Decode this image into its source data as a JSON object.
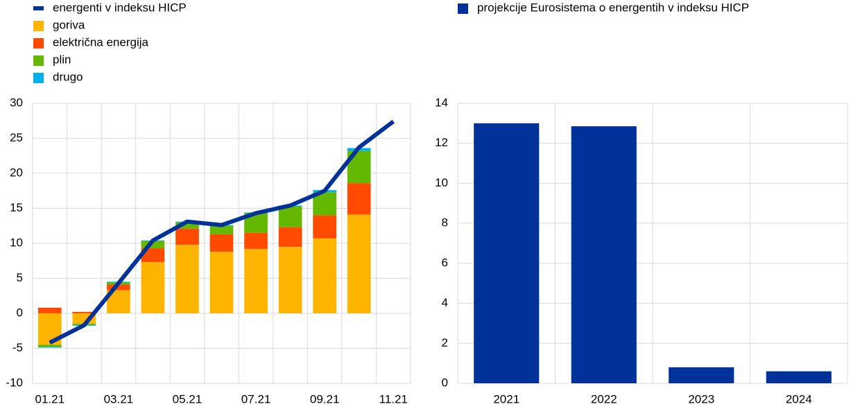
{
  "chart_data": [
    {
      "type": "bar",
      "stacked": true,
      "categories": [
        "01.21",
        null,
        "03.21",
        null,
        "05.21",
        null,
        "07.21",
        null,
        "09.21",
        null,
        "11.21"
      ],
      "series": [
        {
          "name": "energenti v indeksu HICP",
          "type": "line",
          "color": "#003299",
          "values": [
            -4.2,
            -1.7,
            4.3,
            10.4,
            13.1,
            12.6,
            14.3,
            15.4,
            17.5,
            23.7,
            27.4
          ]
        },
        {
          "name": "goriva",
          "color": "#ffb400",
          "values": [
            -4.5,
            -1.5,
            3.3,
            7.3,
            9.8,
            8.8,
            9.2,
            9.5,
            10.7,
            14.1,
            null
          ]
        },
        {
          "name": "električna energija",
          "color": "#ff4b00",
          "values": [
            0.8,
            0.2,
            0.8,
            2.0,
            2.3,
            2.5,
            2.3,
            2.8,
            3.3,
            4.5,
            null
          ]
        },
        {
          "name": "plin",
          "color": "#65b800",
          "values": [
            -0.3,
            -0.2,
            0.3,
            1.0,
            0.9,
            1.2,
            2.8,
            3.0,
            3.3,
            4.6,
            null
          ]
        },
        {
          "name": "drugo",
          "color": "#00b1ea",
          "values": [
            -0.1,
            -0.1,
            0.1,
            0.1,
            0.1,
            0.1,
            0.1,
            0.1,
            0.3,
            0.4,
            null
          ]
        }
      ],
      "ylim": [
        -10,
        30
      ],
      "yticks": [
        -10,
        -5,
        0,
        5,
        10,
        15,
        20,
        25,
        30
      ],
      "grid": true
    },
    {
      "type": "bar",
      "categories": [
        "2021",
        "2022",
        "2023",
        "2024"
      ],
      "series": [
        {
          "name": "projekcije Eurosistema o energentih v indeksu HICP",
          "color": "#003299",
          "values": [
            13.0,
            12.85,
            0.8,
            0.6
          ]
        }
      ],
      "ylim": [
        0,
        14
      ],
      "yticks": [
        0,
        2,
        4,
        6,
        8,
        10,
        12,
        14
      ],
      "grid": true
    }
  ]
}
